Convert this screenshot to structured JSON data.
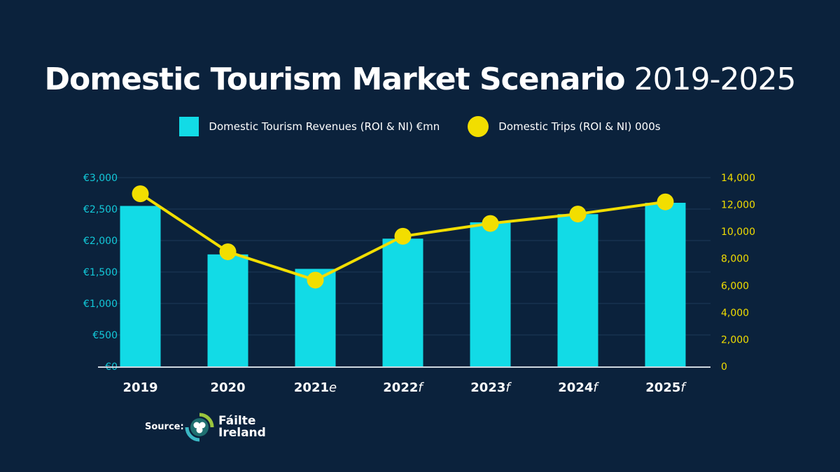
{
  "title": {
    "bold": "Domestic Tourism Market Scenario",
    "years": "2019-2025"
  },
  "legend": {
    "revenues": "Domestic Tourism Revenues (ROI & NI) €mn",
    "trips": "Domestic Trips (ROI & NI) 000s"
  },
  "colors": {
    "background": "#0b223c",
    "bars": "#12dbe6",
    "line": "#f2de00"
  },
  "source": {
    "label": "Source:",
    "logo_line1": "Fáilte",
    "logo_line2": "Ireland"
  },
  "chart_data": {
    "type": "bar+line",
    "categories": [
      {
        "year": "2019",
        "suffix": ""
      },
      {
        "year": "2020",
        "suffix": ""
      },
      {
        "year": "2021",
        "suffix": "e"
      },
      {
        "year": "2022",
        "suffix": "f"
      },
      {
        "year": "2023",
        "suffix": "f"
      },
      {
        "year": "2024",
        "suffix": "f"
      },
      {
        "year": "2025",
        "suffix": "f"
      }
    ],
    "series": [
      {
        "name": "Domestic Tourism Revenues (ROI & NI) €mn",
        "type": "bar",
        "axis": "left",
        "values": [
          2550,
          1780,
          1550,
          2030,
          2290,
          2420,
          2600
        ]
      },
      {
        "name": "Domestic Trips (ROI & NI) 000s",
        "type": "line",
        "axis": "right",
        "values": [
          12800,
          8500,
          6400,
          9650,
          10600,
          11300,
          12200
        ]
      }
    ],
    "y_left": {
      "range": [
        0,
        3000
      ],
      "ticks": [
        "€0",
        "€500",
        "€1,000",
        "€1,500",
        "€2,000",
        "€2,500",
        "€3,000"
      ]
    },
    "y_right": {
      "range": [
        0,
        14000
      ],
      "ticks": [
        "0",
        "2,000",
        "4,000",
        "6,000",
        "8,000",
        "10,000",
        "12,000",
        "14,000"
      ]
    },
    "grid": true,
    "legend_position": "top"
  }
}
